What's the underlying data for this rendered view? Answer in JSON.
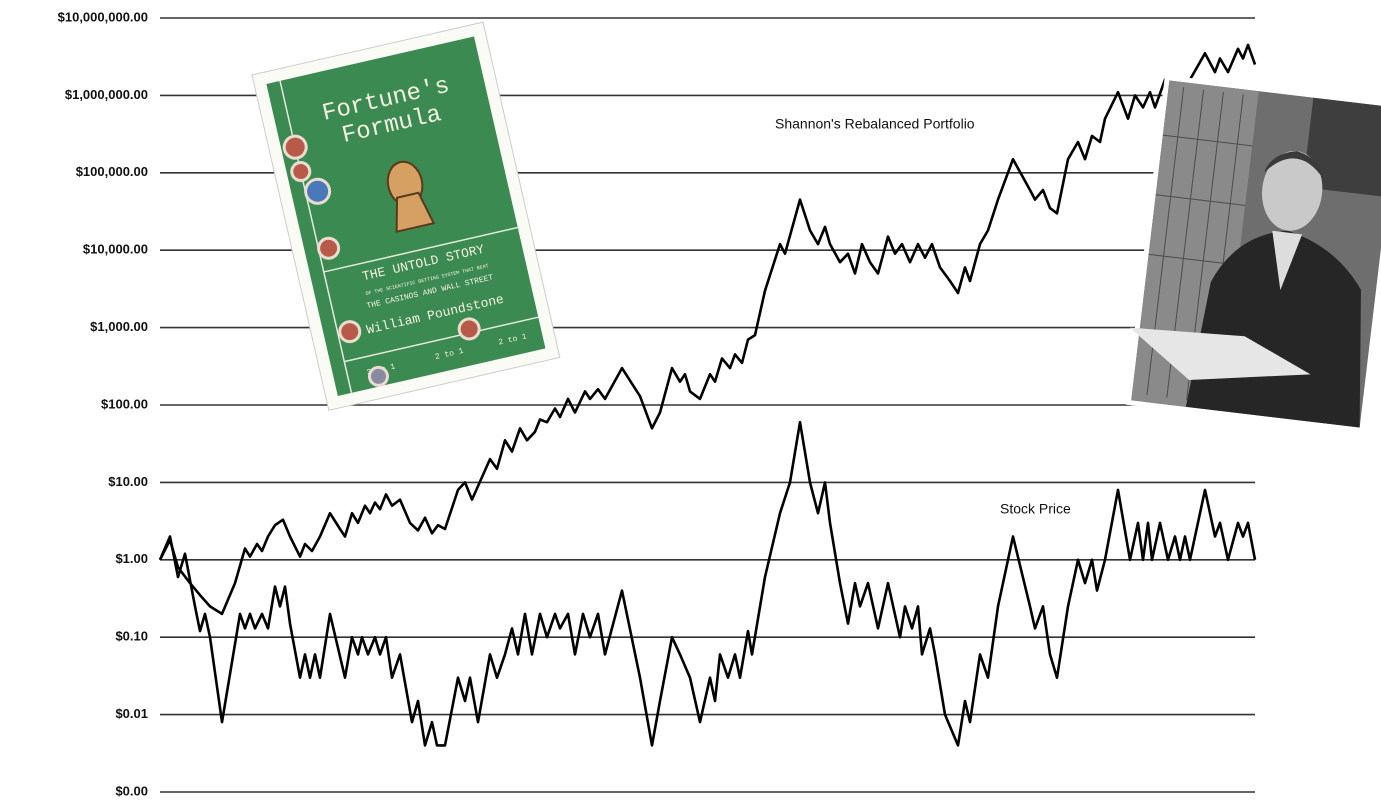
{
  "chart_data": {
    "type": "line",
    "log_y": true,
    "grid": true,
    "ylim": [
      0.001,
      10000000
    ],
    "yticks": [
      {
        "value": 10000000,
        "label": "$10,000,000.00"
      },
      {
        "value": 1000000,
        "label": "$1,000,000.00"
      },
      {
        "value": 100000,
        "label": "$100,000.00"
      },
      {
        "value": 10000,
        "label": "$10,000.00"
      },
      {
        "value": 1000,
        "label": "$1,000.00"
      },
      {
        "value": 100,
        "label": "$100.00"
      },
      {
        "value": 10,
        "label": "$10.00"
      },
      {
        "value": 1,
        "label": "$1.00"
      },
      {
        "value": 0.1,
        "label": "$0.10"
      },
      {
        "value": 0.01,
        "label": "$0.01"
      },
      {
        "value": 0.001,
        "label": "$0.00"
      }
    ],
    "xlim": [
      0,
      1095
    ],
    "series": [
      {
        "name": "Shannon's Rebalanced Portfolio",
        "color": "#000000",
        "x": [
          0,
          10,
          18,
          30,
          40,
          50,
          62,
          75,
          85,
          90,
          97,
          102,
          108,
          115,
          123,
          130,
          140,
          145,
          152,
          160,
          170,
          180,
          185,
          192,
          198,
          205,
          210,
          215,
          220,
          226,
          232,
          240,
          250,
          258,
          265,
          272,
          278,
          285,
          298,
          305,
          312,
          330,
          337,
          345,
          352,
          360,
          367,
          375,
          380,
          387,
          395,
          400,
          408,
          415,
          425,
          430,
          438,
          445,
          462,
          480,
          492,
          500,
          512,
          520,
          525,
          530,
          540,
          550,
          555,
          562,
          570,
          575,
          582,
          588,
          595,
          605,
          620,
          625,
          640,
          650,
          658,
          665,
          670,
          680,
          688,
          695,
          702,
          710,
          718,
          728,
          735,
          742,
          750,
          758,
          765,
          772,
          780,
          790,
          798,
          805,
          810,
          820,
          828,
          838,
          853,
          870,
          875,
          883,
          890,
          897,
          908,
          918,
          925,
          932,
          940,
          945,
          958,
          968,
          975,
          983,
          990,
          995,
          1005,
          1012,
          1030,
          1045,
          1055,
          1060,
          1068,
          1078,
          1083,
          1088,
          1095
        ],
        "values": [
          1,
          1.8,
          0.8,
          0.5,
          0.35,
          0.25,
          0.2,
          0.5,
          1.4,
          1.1,
          1.6,
          1.3,
          2,
          2.8,
          3.3,
          2,
          1.1,
          1.6,
          1.3,
          2,
          4,
          2.5,
          2,
          4,
          3,
          5,
          4,
          5.5,
          4.5,
          7,
          5,
          6,
          3,
          2.4,
          3.5,
          2.2,
          2.8,
          2.5,
          8,
          10,
          6,
          20,
          15,
          35,
          25,
          50,
          35,
          45,
          65,
          60,
          90,
          70,
          120,
          80,
          150,
          120,
          160,
          120,
          300,
          130,
          50,
          80,
          300,
          200,
          250,
          150,
          120,
          250,
          200,
          400,
          300,
          450,
          350,
          700,
          800,
          3000,
          12000,
          9000,
          45000,
          18000,
          12000,
          20000,
          12000,
          7000,
          9000,
          5000,
          12000,
          7000,
          5000,
          15000,
          9000,
          12000,
          7000,
          12000,
          8000,
          12000,
          6000,
          4000,
          2800,
          6000,
          4000,
          12000,
          18000,
          45000,
          150000,
          60000,
          45000,
          60000,
          35000,
          30000,
          150000,
          250000,
          150000,
          300000,
          250000,
          500000,
          1100000,
          500000,
          1000000,
          700000,
          1100000,
          700000,
          1600000,
          900000,
          1600000,
          3500000,
          2000000,
          3000000,
          2000000,
          4000000,
          3000000,
          4500000,
          2500000
        ]
      },
      {
        "name": "Stock Price",
        "color": "#000000",
        "x": [
          0,
          10,
          18,
          25,
          35,
          40,
          45,
          50,
          62,
          80,
          85,
          90,
          95,
          102,
          108,
          115,
          120,
          125,
          130,
          140,
          145,
          150,
          155,
          160,
          170,
          185,
          192,
          198,
          202,
          208,
          215,
          220,
          226,
          232,
          240,
          252,
          258,
          265,
          272,
          277,
          285,
          298,
          305,
          310,
          318,
          330,
          337,
          345,
          352,
          358,
          365,
          372,
          380,
          387,
          395,
          400,
          408,
          415,
          423,
          430,
          438,
          445,
          462,
          480,
          492,
          500,
          512,
          520,
          530,
          540,
          550,
          555,
          560,
          568,
          575,
          580,
          588,
          592,
          605,
          620,
          630,
          640,
          650,
          658,
          665,
          670,
          680,
          688,
          695,
          700,
          708,
          718,
          728,
          740,
          745,
          752,
          758,
          762,
          770,
          775,
          785,
          798,
          805,
          810,
          820,
          828,
          838,
          853,
          870,
          875,
          883,
          890,
          897,
          908,
          918,
          925,
          932,
          937,
          945,
          958,
          970,
          978,
          983,
          988,
          992,
          1000,
          1008,
          1015,
          1020,
          1025,
          1030,
          1045,
          1055,
          1060,
          1068,
          1078,
          1083,
          1088,
          1095
        ],
        "values": [
          1,
          2,
          0.6,
          1.2,
          0.25,
          0.12,
          0.2,
          0.1,
          0.008,
          0.2,
          0.13,
          0.2,
          0.13,
          0.2,
          0.13,
          0.45,
          0.25,
          0.45,
          0.15,
          0.03,
          0.06,
          0.03,
          0.06,
          0.03,
          0.2,
          0.03,
          0.1,
          0.06,
          0.1,
          0.06,
          0.1,
          0.06,
          0.1,
          0.03,
          0.06,
          0.008,
          0.015,
          0.004,
          0.008,
          0.004,
          0.004,
          0.03,
          0.015,
          0.03,
          0.008,
          0.06,
          0.03,
          0.06,
          0.13,
          0.06,
          0.2,
          0.06,
          0.2,
          0.1,
          0.2,
          0.13,
          0.2,
          0.06,
          0.2,
          0.1,
          0.2,
          0.06,
          0.4,
          0.03,
          0.004,
          0.015,
          0.1,
          0.06,
          0.03,
          0.008,
          0.03,
          0.015,
          0.06,
          0.03,
          0.06,
          0.03,
          0.12,
          0.06,
          0.6,
          4,
          10,
          60,
          10,
          4,
          10,
          3,
          0.5,
          0.15,
          0.5,
          0.25,
          0.5,
          0.13,
          0.5,
          0.1,
          0.25,
          0.13,
          0.25,
          0.06,
          0.13,
          0.06,
          0.01,
          0.004,
          0.015,
          0.008,
          0.06,
          0.03,
          0.25,
          2,
          0.25,
          0.13,
          0.25,
          0.06,
          0.03,
          0.25,
          1,
          0.5,
          1,
          0.4,
          1,
          8,
          1,
          3,
          1,
          3,
          1,
          3,
          1,
          2,
          1,
          2,
          1,
          8,
          2,
          3,
          1,
          3,
          2,
          3,
          1
        ]
      }
    ]
  },
  "book_cover": {
    "title_lines": [
      "Fortune's",
      "Formula"
    ],
    "subtitle_lines": [
      "THE UNTOLD STORY",
      "OF THE SCIENTIFIC BETTING SYSTEM THAT BEAT",
      "THE CASINOS AND WALL STREET"
    ],
    "author": "William Poundstone",
    "odds": [
      "3 to 1",
      "2 to 1",
      "2 to 1"
    ]
  }
}
